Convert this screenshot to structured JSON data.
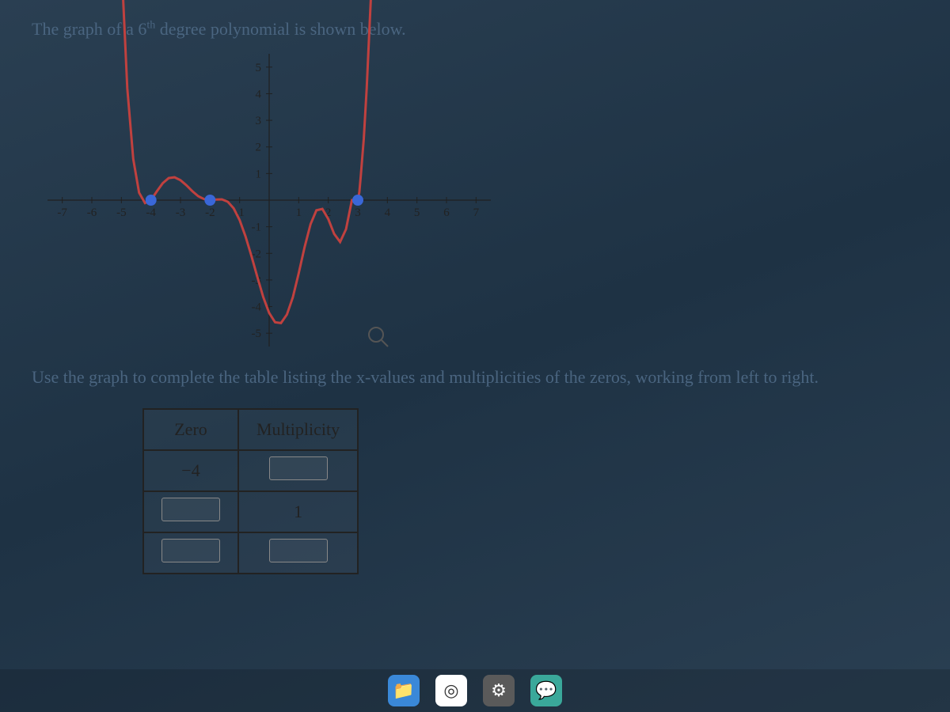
{
  "prompt": {
    "prefix": "The graph of a ",
    "degree_base": "6",
    "degree_sup": "th",
    "suffix": " degree polynomial is shown below."
  },
  "chart": {
    "type": "line",
    "xlim": [
      -7.5,
      7.5
    ],
    "ylim": [
      -5.5,
      5.5
    ],
    "xticks": [
      -7,
      -6,
      -5,
      -4,
      -3,
      -2,
      -1,
      1,
      2,
      3,
      4,
      5,
      6,
      7
    ],
    "yticks": [
      -5,
      -4,
      -3,
      -2,
      -1,
      1,
      2,
      3,
      4,
      5
    ],
    "tick_fontsize": 15,
    "axis_color": "#202020",
    "curve_color": "#c0413f",
    "curve_width": 3,
    "zero_dot_color": "#3a67d8",
    "zero_dot_radius": 7,
    "zeros_highlighted": [
      -4,
      -2,
      3
    ],
    "axis_arrow_size": 0,
    "curve_points": [
      [
        -5.0,
        9.0
      ],
      [
        -4.8,
        4.2
      ],
      [
        -4.6,
        1.55
      ],
      [
        -4.4,
        0.28
      ],
      [
        -4.2,
        -0.11
      ],
      [
        -4.0,
        0.0
      ],
      [
        -3.8,
        0.33
      ],
      [
        -3.6,
        0.64
      ],
      [
        -3.4,
        0.83
      ],
      [
        -3.2,
        0.86
      ],
      [
        -3.0,
        0.75
      ],
      [
        -2.8,
        0.56
      ],
      [
        -2.6,
        0.34
      ],
      [
        -2.4,
        0.15
      ],
      [
        -2.2,
        0.04
      ],
      [
        -2.0,
        0.0
      ],
      [
        -1.8,
        0.02
      ],
      [
        -1.6,
        0.03
      ],
      [
        -1.4,
        -0.06
      ],
      [
        -1.2,
        -0.31
      ],
      [
        -1.0,
        -0.75
      ],
      [
        -0.8,
        -1.36
      ],
      [
        -0.6,
        -2.1
      ],
      [
        -0.4,
        -2.89
      ],
      [
        -0.2,
        -3.64
      ],
      [
        0.0,
        -4.24
      ],
      [
        0.2,
        -4.59
      ],
      [
        0.4,
        -4.62
      ],
      [
        0.6,
        -4.3
      ],
      [
        0.8,
        -3.65
      ],
      [
        1.0,
        -2.75
      ],
      [
        1.2,
        -1.76
      ],
      [
        1.4,
        -0.9
      ],
      [
        1.6,
        -0.38
      ],
      [
        1.8,
        -0.33
      ],
      [
        2.0,
        -0.71
      ],
      [
        2.2,
        -1.27
      ],
      [
        2.4,
        -1.57
      ],
      [
        2.6,
        -1.09
      ],
      [
        2.8,
        0.0
      ],
      [
        3.0,
        0.0
      ],
      [
        3.05,
        0.3
      ],
      [
        3.1,
        0.9
      ],
      [
        3.2,
        2.3
      ],
      [
        3.3,
        4.2
      ],
      [
        3.4,
        6.6
      ],
      [
        3.5,
        9.0
      ]
    ]
  },
  "instruction": "Use the graph to complete the table listing the x-values and multiplicities of the zeros, working from left to right.",
  "table": {
    "headers": [
      "Zero",
      "Multiplicity"
    ],
    "rows": [
      {
        "zero": "−4",
        "mult": "",
        "zero_is_input": false,
        "mult_is_input": true
      },
      {
        "zero": "",
        "mult": "1",
        "zero_is_input": true,
        "mult_is_input": false
      },
      {
        "zero": "",
        "mult": "",
        "zero_is_input": true,
        "mult_is_input": true
      }
    ]
  },
  "magnifier": {
    "x_svg": 415,
    "y_svg": 355
  },
  "taskbar": {
    "icons": [
      {
        "name": "file-explorer-icon",
        "bg": "#3a88d8",
        "glyph": "📁"
      },
      {
        "name": "chrome-icon",
        "bg": "#ffffff",
        "glyph": "◎"
      },
      {
        "name": "settings-icon",
        "bg": "#5a5a5a",
        "glyph": "⚙"
      },
      {
        "name": "chat-icon",
        "bg": "#3aa89a",
        "glyph": "💬"
      }
    ]
  }
}
